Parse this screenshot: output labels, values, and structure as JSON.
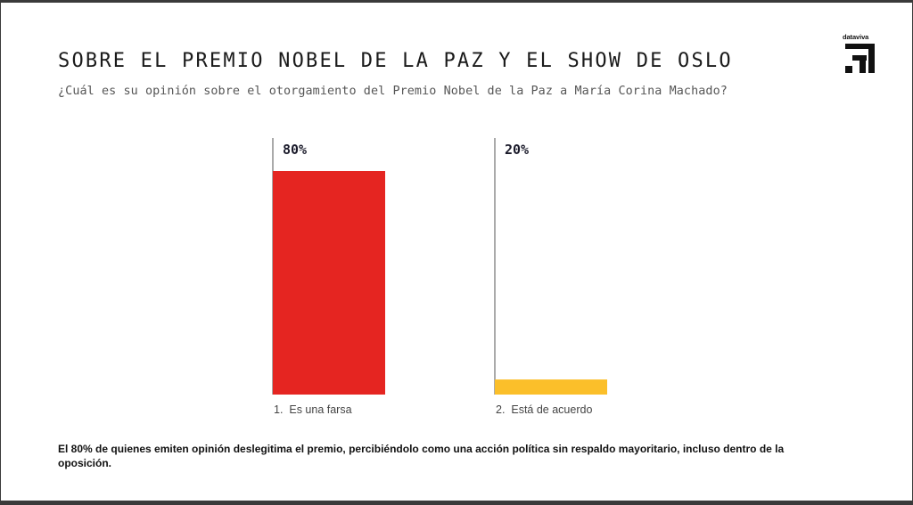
{
  "header": {
    "title": "SOBRE EL PREMIO NOBEL DE LA PAZ Y EL SHOW DE OSLO",
    "subtitle": "¿Cuál es su opinión sobre el otorgamiento del Premio Nobel de la Paz a María Corina Machado?"
  },
  "logo": {
    "text": "dataviva",
    "icon": "dataviva-logo-icon"
  },
  "chart_data": {
    "type": "bar",
    "title": "¿Cuál es su opinión sobre el otorgamiento del Premio Nobel de la Paz a María Corina Machado?",
    "categories": [
      "1.  Es una farsa",
      "2.  Está de acuerdo"
    ],
    "values": [
      80,
      20
    ],
    "value_labels": [
      "80%",
      "20%"
    ],
    "colors": [
      "#e52521",
      "#fbbf2a"
    ],
    "xlabel": "",
    "ylabel": "",
    "ylim": [
      0,
      80
    ],
    "grid": false,
    "legend": "none"
  },
  "footnote": "El 80% de quienes emiten opinión deslegitima el premio, percibiéndolo como una acción política sin respaldo mayoritario, incluso dentro de la oposición."
}
